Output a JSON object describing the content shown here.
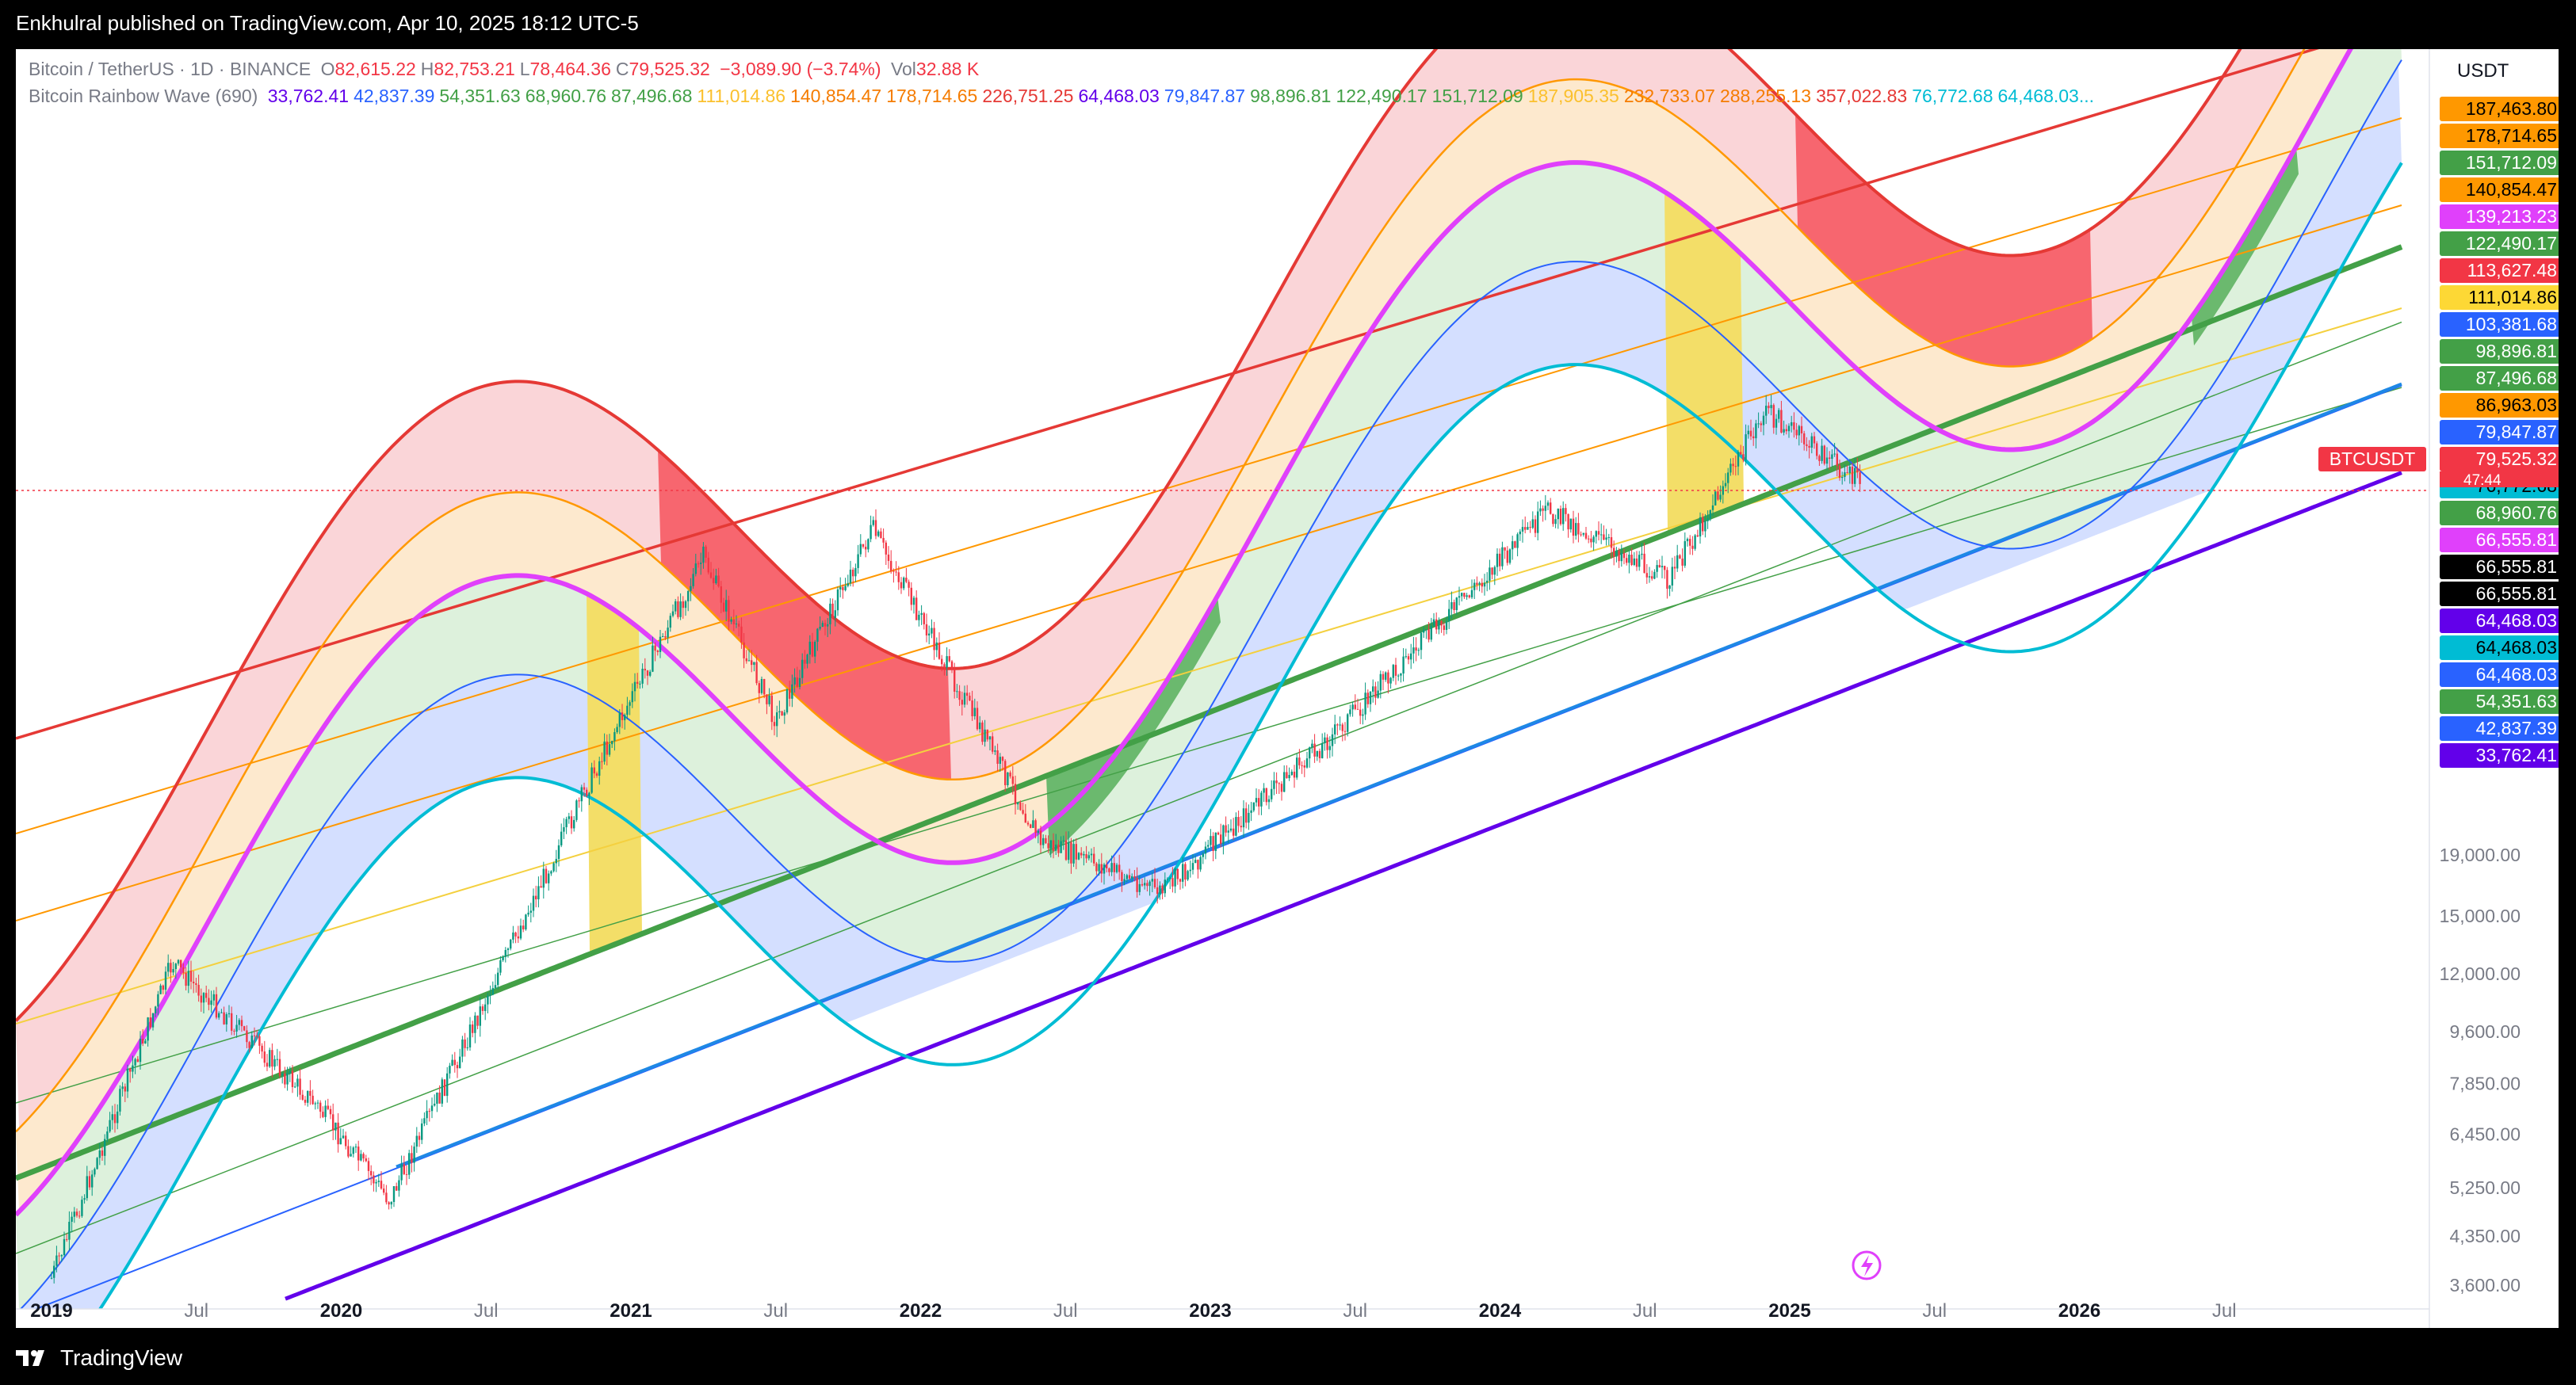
{
  "header": {
    "published": "Enkhulral published on TradingView.com, Apr 10, 2025 18:12 UTC-5"
  },
  "legend": {
    "symbol": "Bitcoin / TetherUS · 1D · BINANCE",
    "ohlc": [
      {
        "k": "O",
        "v": "82,615.22"
      },
      {
        "k": "H",
        "v": "82,753.21"
      },
      {
        "k": "L",
        "v": "78,464.36"
      },
      {
        "k": "C",
        "v": "79,525.32"
      }
    ],
    "change": "−3,089.90 (−3.74%)",
    "vol_label": "Vol",
    "vol_value": "32.88 K",
    "indicator": "Bitcoin Rainbow Wave (690)",
    "indicator_values": [
      {
        "v": "33,762.41",
        "c": "#6200ea"
      },
      {
        "v": "42,837.39",
        "c": "#2962ff"
      },
      {
        "v": "54,351.63",
        "c": "#43a047"
      },
      {
        "v": "68,960.76",
        "c": "#43a047"
      },
      {
        "v": "87,496.68",
        "c": "#43a047"
      },
      {
        "v": "111,014.86",
        "c": "#fbc02d"
      },
      {
        "v": "140,854.47",
        "c": "#f57c00"
      },
      {
        "v": "178,714.65",
        "c": "#f57c00"
      },
      {
        "v": "226,751.25",
        "c": "#e53935"
      },
      {
        "v": "64,468.03",
        "c": "#6200ea"
      },
      {
        "v": "79,847.87",
        "c": "#2962ff"
      },
      {
        "v": "98,896.81",
        "c": "#43a047"
      },
      {
        "v": "122,490.17",
        "c": "#43a047"
      },
      {
        "v": "151,712.09",
        "c": "#43a047"
      },
      {
        "v": "187,905.35",
        "c": "#fbc02d"
      },
      {
        "v": "232,733.07",
        "c": "#f57c00"
      },
      {
        "v": "288,255.13",
        "c": "#f57c00"
      },
      {
        "v": "357,022.83",
        "c": "#e53935"
      },
      {
        "v": "76,772.68",
        "c": "#00bcd4"
      },
      {
        "v": "64,468.03...",
        "c": "#00bcd4"
      }
    ]
  },
  "chart_data": {
    "type": "line",
    "title": "Bitcoin / TetherUS · 1D · BINANCE",
    "currency": "USDT",
    "y_scale": "log",
    "x_ticks": [
      "2019",
      "Jul",
      "2020",
      "Jul",
      "2021",
      "Jul",
      "2022",
      "Jul",
      "2023",
      "Jul",
      "2024",
      "Jul",
      "2025",
      "Jul",
      "2026",
      "Jul"
    ],
    "y_ticks": [
      "19,000.00",
      "15,000.00",
      "12,000.00",
      "9,600.00",
      "7,850.00",
      "6,450.00",
      "5,250.00",
      "4,350.00",
      "3,600.00"
    ],
    "last_price": {
      "label": "BTCUSDT",
      "value": "79,525.32",
      "countdown": "47:44",
      "color": "#f23645"
    },
    "price_path_key_points": [
      {
        "date": "2019-01",
        "close": 3700
      },
      {
        "date": "2019-06",
        "close": 12500
      },
      {
        "date": "2019-12",
        "close": 7200
      },
      {
        "date": "2020-03",
        "close": 5000
      },
      {
        "date": "2020-12",
        "close": 29000
      },
      {
        "date": "2021-04",
        "close": 60000
      },
      {
        "date": "2021-07",
        "close": 32000
      },
      {
        "date": "2021-11",
        "close": 67000
      },
      {
        "date": "2022-06",
        "close": 20000
      },
      {
        "date": "2022-11",
        "close": 16500
      },
      {
        "date": "2023-06",
        "close": 30000
      },
      {
        "date": "2024-03",
        "close": 72000
      },
      {
        "date": "2024-08",
        "close": 55000
      },
      {
        "date": "2024-12",
        "close": 106000
      },
      {
        "date": "2025-04",
        "close": 79525
      }
    ],
    "axis_badges": [
      {
        "v": "187,463.80",
        "bg": "#ff9800",
        "fg": "#000000"
      },
      {
        "v": "178,714.65",
        "bg": "#ff9800",
        "fg": "#000000"
      },
      {
        "v": "151,712.09",
        "bg": "#43a047",
        "fg": "#ffffff"
      },
      {
        "v": "140,854.47",
        "bg": "#ff9800",
        "fg": "#000000"
      },
      {
        "v": "139,213.23",
        "bg": "#e040fb",
        "fg": "#ffffff"
      },
      {
        "v": "122,490.17",
        "bg": "#43a047",
        "fg": "#ffffff"
      },
      {
        "v": "113,627.48",
        "bg": "#f23645",
        "fg": "#ffffff"
      },
      {
        "v": "111,014.86",
        "bg": "#fdd835",
        "fg": "#000000"
      },
      {
        "v": "103,381.68",
        "bg": "#2962ff",
        "fg": "#ffffff"
      },
      {
        "v": "98,896.81",
        "bg": "#43a047",
        "fg": "#ffffff"
      },
      {
        "v": "87,496.68",
        "bg": "#43a047",
        "fg": "#ffffff"
      },
      {
        "v": "86,963.03",
        "bg": "#ff9800",
        "fg": "#000000"
      },
      {
        "v": "79,847.87",
        "bg": "#2962ff",
        "fg": "#ffffff"
      },
      {
        "v": "79,525.32",
        "bg": "#f23645",
        "fg": "#ffffff"
      },
      {
        "v": "76,772.68",
        "bg": "#00bcd4",
        "fg": "#000000"
      },
      {
        "v": "68,960.76",
        "bg": "#43a047",
        "fg": "#ffffff"
      },
      {
        "v": "66,555.81",
        "bg": "#e040fb",
        "fg": "#ffffff"
      },
      {
        "v": "66,555.81",
        "bg": "#000000",
        "fg": "#ffffff"
      },
      {
        "v": "66,555.81",
        "bg": "#000000",
        "fg": "#ffffff"
      },
      {
        "v": "64,468.03",
        "bg": "#6200ea",
        "fg": "#ffffff"
      },
      {
        "v": "64,468.03",
        "bg": "#00bcd4",
        "fg": "#000000"
      },
      {
        "v": "64,468.03",
        "bg": "#2962ff",
        "fg": "#ffffff"
      },
      {
        "v": "54,351.63",
        "bg": "#43a047",
        "fg": "#ffffff"
      },
      {
        "v": "42,837.39",
        "bg": "#2962ff",
        "fg": "#ffffff"
      },
      {
        "v": "33,762.41",
        "bg": "#6200ea",
        "fg": "#ffffff"
      }
    ],
    "colors": {
      "red": "#e53935",
      "orange": "#ff9800",
      "yellow": "#fdd835",
      "green": "#43a047",
      "blue": "#2962ff",
      "cyan": "#00bcd4",
      "purple": "#6200ea",
      "magenta": "#e040fb",
      "up_candle": "#089981",
      "down_candle": "#f23645"
    }
  },
  "footer": {
    "brand": "TradingView"
  }
}
